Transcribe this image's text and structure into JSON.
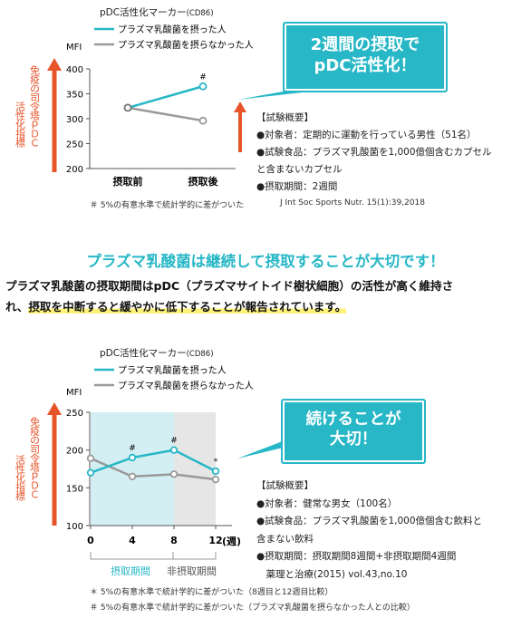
{
  "chart_data": [
    {
      "type": "line",
      "title": "pDC活性化マーカー",
      "title_unit": "(CD86)",
      "ylabel": "MFI",
      "side_label_main": "免疫の司令塔ｐＤＣ",
      "side_label_sub": "活性化指標",
      "ylim": [
        200,
        400
      ],
      "yticks": [
        200,
        250,
        300,
        350,
        400
      ],
      "categories": [
        "摂取前",
        "摂取後"
      ],
      "series": [
        {
          "name": "プラズマ乳酸菌を摂った人",
          "color": "#27b7c6",
          "values": [
            322,
            365
          ]
        },
        {
          "name": "プラズマ乳酸菌を摂らなかった人",
          "color": "#999999",
          "values": [
            322,
            296
          ]
        }
      ],
      "annotations": [
        {
          "category": "摂取後",
          "text": "#"
        }
      ],
      "legend": "top-left",
      "grid": false
    },
    {
      "type": "line",
      "title": "pDC活性化マーカー",
      "title_unit": "(CD86)",
      "ylabel": "MFI",
      "xlabel_unit": "(週)",
      "side_label_main": "免疫の司令塔ｐＤＣ",
      "side_label_sub": "活性化指標",
      "ylim": [
        100,
        250
      ],
      "yticks": [
        100,
        150,
        200,
        250
      ],
      "x": [
        0,
        4,
        8,
        12
      ],
      "series": [
        {
          "name": "プラズマ乳酸菌を摂った人",
          "color": "#27b7c6",
          "values": [
            170,
            190,
            200,
            172
          ]
        },
        {
          "name": "プラズマ乳酸菌を摂らなかった人",
          "color": "#999999",
          "values": [
            189,
            165,
            168,
            161
          ]
        }
      ],
      "annotations": [
        {
          "x": 4,
          "text": "#"
        },
        {
          "x": 8,
          "text": "#"
        },
        {
          "x": 12,
          "text": "*"
        }
      ],
      "periods": [
        {
          "label": "摂取期間",
          "from": 0,
          "to": 8,
          "color": "#d3eff3"
        },
        {
          "label": "非摂取期間",
          "from": 8,
          "to": 12,
          "color": "#e6e6e6"
        }
      ],
      "legend": "top-left",
      "grid": false
    }
  ],
  "top": {
    "callout": [
      "2週間の摂取で",
      "pDC活性化！"
    ],
    "summary": [
      "【試験概要】",
      "●対象者：定期的に運動を行っている男性（51名）",
      "●試験食品：プラズマ乳酸菌を1,000億個含むカプセル",
      "と含まないカプセル",
      "●摂取期間：2週間"
    ],
    "footnote": "＃ 5%の有意水準で統計学的に差がついた",
    "citation": "J Int Soc Sports Nutr. 15(1):39,2018"
  },
  "middle": {
    "headline": "プラズマ乳酸菌は継続して摂取することが大切です！",
    "line1": "プラズマ乳酸菌の摂取期間はpDC（プラズマサイトイド樹状細胞）の活性が高く維持さ",
    "line2_prefix": "れ、",
    "line2_highlight": "摂取を中断すると緩やかに低下することが報告されています。"
  },
  "bottom": {
    "callout": [
      "続けることが",
      "大切！"
    ],
    "summary": [
      "【試験概要】",
      "●対象者：健常な男女（100名）",
      "●試験食品：プラズマ乳酸菌を1,000億個含む飲料と",
      "含まない飲料",
      "●摂取期間：摂取期間8週間+非摂取期間4週間",
      "　薬理と治療(2015) vol.43,no.10"
    ],
    "footnotes": [
      "＊ 5%の有意水準で統計学的に差がついた（8週目と12週目比較）",
      "＃ 5%の有意水準で統計学的に差がついた（プラズマ乳酸菌を摂らなかった人との比較）"
    ]
  },
  "colors": {
    "accent": "#27b7c6",
    "gray": "#999999",
    "arrow": "#e8542a"
  }
}
